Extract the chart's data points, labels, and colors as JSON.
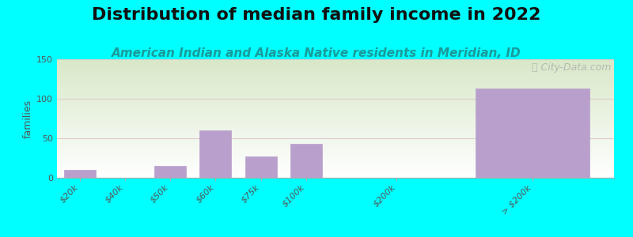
{
  "title": "Distribution of median family income in 2022",
  "subtitle": "American Indian and Alaska Native residents in Meridian, ID",
  "watermark": "ⓘ City-Data.com",
  "ylabel": "families",
  "background_color": "#00FFFF",
  "plot_bg_color_topleft": "#d8e8c8",
  "plot_bg_color_bottomright": "#ffffff",
  "bar_color": "#b9a0cc",
  "bar_edge_color": "#b9a0cc",
  "categories": [
    "$20k",
    "$40k",
    "$50k",
    "$60k",
    "$75k",
    "$100k",
    "$200k",
    "> $200k"
  ],
  "values": [
    10,
    0,
    15,
    60,
    27,
    43,
    0,
    113
  ],
  "bar_positions": [
    0,
    1,
    2,
    3,
    4,
    5,
    7,
    10
  ],
  "bar_widths": [
    0.7,
    0.7,
    0.7,
    0.7,
    0.7,
    0.7,
    0.7,
    2.5
  ],
  "xlim": [
    -0.5,
    11.8
  ],
  "ylim": [
    0,
    150
  ],
  "yticks": [
    0,
    50,
    100,
    150
  ],
  "title_fontsize": 16,
  "subtitle_fontsize": 11,
  "watermark_fontsize": 9,
  "ylabel_fontsize": 9,
  "tick_fontsize": 8,
  "title_color": "#111111",
  "subtitle_color": "#1a9a9a",
  "ylabel_color": "#555555",
  "tick_color": "#555555",
  "grid_color": "#ddcccc",
  "spine_color": "#aaaaaa"
}
